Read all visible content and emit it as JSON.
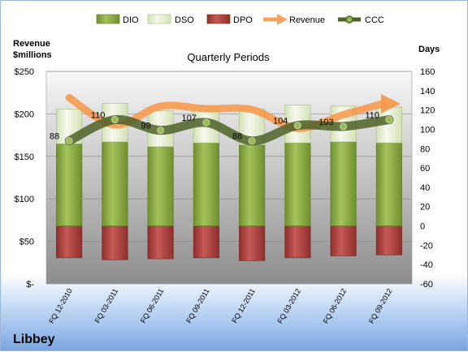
{
  "chart_data": {
    "type": "bar",
    "title": "Quarterly Periods",
    "company": "Libbey",
    "y_left_label_1": "Revenue",
    "y_left_label_2": "$millions",
    "y_right_label": "Days",
    "categories": [
      "FQ 12-2010",
      "FQ 03-2011",
      "FQ 06-2011",
      "FQ 09-2011",
      "FQ 12-2011",
      "FQ 03-2012",
      "FQ 06-2012",
      "FQ 09-2012"
    ],
    "left_axis": {
      "min": 0,
      "max": 250,
      "ticks": [
        0,
        50,
        100,
        150,
        200,
        250
      ],
      "tick_labels": [
        "$-",
        "$50",
        "$100",
        "$150",
        "$200",
        "$250"
      ]
    },
    "right_axis": {
      "min": -60,
      "max": 160,
      "ticks": [
        -60,
        -40,
        -20,
        0,
        20,
        40,
        60,
        80,
        100,
        120,
        140,
        160
      ]
    },
    "series": [
      {
        "name": "DIO",
        "unit": "days",
        "values": [
          85,
          87,
          82,
          86,
          84,
          86,
          87,
          86
        ],
        "color": "#8fb14a"
      },
      {
        "name": "DSO",
        "unit": "days",
        "values": [
          36,
          40,
          37,
          38,
          37,
          39,
          37,
          37
        ],
        "color": "#eaf1dd"
      },
      {
        "name": "DPO",
        "unit": "days",
        "values": [
          -33,
          -35,
          -34,
          -33,
          -36,
          -33,
          -31,
          -30
        ],
        "color": "#c0504d"
      },
      {
        "name": "Revenue",
        "unit": "$millions",
        "values": [
          219,
          187,
          209,
          206,
          205,
          183,
          199,
          212
        ],
        "color": "#f4a460"
      },
      {
        "name": "CCC",
        "unit": "days",
        "values": [
          88,
          110,
          99,
          107,
          88,
          104,
          103,
          110
        ],
        "color": "#4f6228"
      }
    ],
    "ccc_labels": [
      "88",
      "110",
      "99",
      "107",
      "88",
      "104",
      "103",
      "110"
    ],
    "legend": [
      "DIO",
      "DSO",
      "DPO",
      "Revenue",
      "CCC"
    ],
    "legend_position": "top"
  }
}
